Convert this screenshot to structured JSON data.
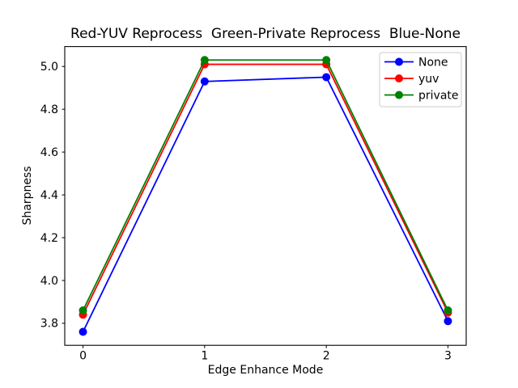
{
  "chart_data": {
    "type": "line",
    "title": "Red-YUV Reprocess  Green-Private Reprocess  Blue-None",
    "xlabel": "Edge Enhance Mode",
    "ylabel": "Sharpness",
    "x": [
      0,
      1,
      2,
      3
    ],
    "series": [
      {
        "name": "None",
        "color": "#0000ff",
        "values": [
          3.76,
          4.93,
          4.95,
          3.81
        ]
      },
      {
        "name": "yuv",
        "color": "#ff0000",
        "values": [
          3.84,
          5.01,
          5.01,
          3.85
        ]
      },
      {
        "name": "private",
        "color": "#008000",
        "values": [
          3.86,
          5.03,
          5.03,
          3.86
        ]
      }
    ],
    "xticks": [
      0,
      1,
      2,
      3
    ],
    "yticks": [
      3.8,
      4.0,
      4.2,
      4.4,
      4.6,
      4.8,
      5.0
    ],
    "xlim": [
      -0.15,
      3.15
    ],
    "ylim": [
      3.697,
      5.093
    ],
    "grid": false,
    "legend_position": "upper right",
    "marker": "circle",
    "axes_color": "#000000",
    "legend_border_color": "#cccccc",
    "background_color": "#ffffff"
  }
}
